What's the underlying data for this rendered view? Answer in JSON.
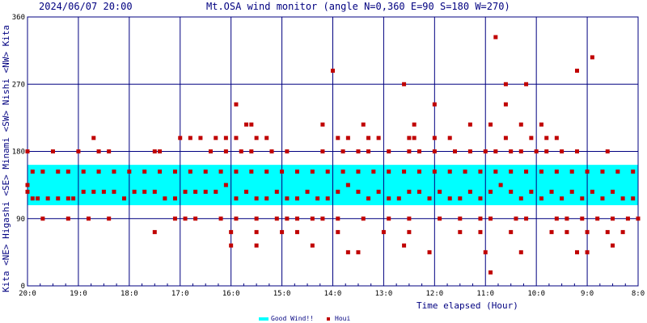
{
  "header": {
    "timestamp": "2024/06/07 20:00",
    "title": "Mt.OSA wind monitor (angle N=0,360 E=90 S=180 W=270)"
  },
  "side_label": "Kita  <NE> Higashi  <SE> Minami  <SW> Nishi  <NW>  Kita",
  "colors": {
    "grid": "#000080",
    "band": "#00ffff",
    "points": "#c00000",
    "bg": "#ffffff"
  },
  "chart_data": {
    "type": "scatter",
    "title": "Mt.OSA wind monitor (angle N=0,360 E=90 S=180 W=270)",
    "xlabel": "Time elapsed (Hour)",
    "ylabel": "Kita  <NE> Higashi  <SE> Minami  <SW> Nishi  <NW>  Kita",
    "ylim": [
      0,
      360
    ],
    "y_ticks": [
      0,
      90,
      180,
      270,
      360
    ],
    "x_ticks": [
      "20:0",
      "19:0",
      "18:0",
      "17:0",
      "16:0",
      "15:0",
      "14:0",
      "13:0",
      "12:0",
      "11:0",
      "10:0",
      "9:0",
      "8:0"
    ],
    "grid": true,
    "legend_position": "bottom-center",
    "good_wind_band": [
      108,
      162
    ],
    "legend": [
      {
        "name": "Good Wind!!",
        "kind": "band"
      },
      {
        "name": "Houi",
        "kind": "marker"
      }
    ],
    "series": [
      {
        "name": "Houi",
        "points": [
          [
            20.0,
            135
          ],
          [
            20.0,
            126
          ],
          [
            19.9,
            117
          ],
          [
            19.8,
            117
          ],
          [
            19.6,
            117
          ],
          [
            19.4,
            117
          ],
          [
            19.2,
            117
          ],
          [
            19.1,
            117
          ],
          [
            18.9,
            126
          ],
          [
            18.7,
            126
          ],
          [
            18.5,
            126
          ],
          [
            18.3,
            126
          ],
          [
            18.1,
            117
          ],
          [
            17.9,
            126
          ],
          [
            17.7,
            126
          ],
          [
            17.5,
            126
          ],
          [
            17.3,
            117
          ],
          [
            17.1,
            117
          ],
          [
            16.9,
            126
          ],
          [
            16.7,
            126
          ],
          [
            16.5,
            126
          ],
          [
            16.3,
            126
          ],
          [
            16.1,
            135
          ],
          [
            15.9,
            117
          ],
          [
            15.7,
            126
          ],
          [
            15.5,
            117
          ],
          [
            15.3,
            117
          ],
          [
            15.1,
            126
          ],
          [
            14.9,
            117
          ],
          [
            14.7,
            117
          ],
          [
            14.5,
            126
          ],
          [
            14.3,
            117
          ],
          [
            14.1,
            117
          ],
          [
            13.9,
            126
          ],
          [
            13.7,
            135
          ],
          [
            13.5,
            126
          ],
          [
            13.3,
            117
          ],
          [
            13.1,
            126
          ],
          [
            12.9,
            117
          ],
          [
            12.7,
            117
          ],
          [
            12.5,
            126
          ],
          [
            12.3,
            126
          ],
          [
            12.1,
            117
          ],
          [
            11.9,
            126
          ],
          [
            11.7,
            117
          ],
          [
            11.5,
            117
          ],
          [
            11.3,
            126
          ],
          [
            11.1,
            117
          ],
          [
            10.9,
            126
          ],
          [
            10.7,
            135
          ],
          [
            10.5,
            126
          ],
          [
            10.3,
            117
          ],
          [
            10.1,
            126
          ],
          [
            9.9,
            117
          ],
          [
            9.7,
            126
          ],
          [
            9.5,
            117
          ],
          [
            9.3,
            126
          ],
          [
            9.1,
            117
          ],
          [
            8.9,
            126
          ],
          [
            8.7,
            117
          ],
          [
            8.5,
            126
          ],
          [
            8.3,
            117
          ],
          [
            8.1,
            117
          ],
          [
            19.9,
            153
          ],
          [
            19.7,
            153
          ],
          [
            19.4,
            153
          ],
          [
            19.2,
            153
          ],
          [
            18.9,
            153
          ],
          [
            18.6,
            153
          ],
          [
            18.3,
            153
          ],
          [
            18.0,
            153
          ],
          [
            17.7,
            153
          ],
          [
            17.4,
            153
          ],
          [
            17.1,
            153
          ],
          [
            16.8,
            153
          ],
          [
            16.5,
            153
          ],
          [
            16.2,
            153
          ],
          [
            15.9,
            153
          ],
          [
            15.6,
            153
          ],
          [
            15.3,
            153
          ],
          [
            15.0,
            153
          ],
          [
            14.7,
            153
          ],
          [
            14.4,
            153
          ],
          [
            14.1,
            153
          ],
          [
            13.8,
            153
          ],
          [
            13.5,
            153
          ],
          [
            13.2,
            153
          ],
          [
            12.9,
            153
          ],
          [
            12.6,
            153
          ],
          [
            12.3,
            153
          ],
          [
            12.0,
            153
          ],
          [
            11.7,
            153
          ],
          [
            11.4,
            153
          ],
          [
            11.1,
            153
          ],
          [
            10.8,
            153
          ],
          [
            10.5,
            153
          ],
          [
            10.2,
            153
          ],
          [
            9.9,
            153
          ],
          [
            9.6,
            153
          ],
          [
            9.3,
            153
          ],
          [
            9.0,
            153
          ],
          [
            8.7,
            153
          ],
          [
            8.4,
            153
          ],
          [
            8.1,
            153
          ],
          [
            20.0,
            180
          ],
          [
            19.5,
            180
          ],
          [
            19.0,
            180
          ],
          [
            18.6,
            180
          ],
          [
            18.4,
            180
          ],
          [
            17.5,
            180
          ],
          [
            17.4,
            180
          ],
          [
            16.4,
            180
          ],
          [
            16.1,
            180
          ],
          [
            15.8,
            180
          ],
          [
            15.6,
            180
          ],
          [
            15.2,
            180
          ],
          [
            14.9,
            180
          ],
          [
            14.2,
            180
          ],
          [
            13.8,
            180
          ],
          [
            13.5,
            180
          ],
          [
            13.3,
            180
          ],
          [
            12.9,
            180
          ],
          [
            12.5,
            180
          ],
          [
            12.3,
            180
          ],
          [
            12.0,
            180
          ],
          [
            11.6,
            180
          ],
          [
            11.3,
            180
          ],
          [
            11.0,
            180
          ],
          [
            10.8,
            180
          ],
          [
            10.5,
            180
          ],
          [
            10.3,
            180
          ],
          [
            10.0,
            180
          ],
          [
            9.8,
            180
          ],
          [
            9.5,
            180
          ],
          [
            9.2,
            180
          ],
          [
            8.6,
            180
          ],
          [
            18.7,
            198
          ],
          [
            17.0,
            198
          ],
          [
            16.8,
            198
          ],
          [
            16.6,
            198
          ],
          [
            16.3,
            198
          ],
          [
            16.1,
            198
          ],
          [
            15.9,
            198
          ],
          [
            15.5,
            198
          ],
          [
            15.3,
            198
          ],
          [
            13.9,
            198
          ],
          [
            13.7,
            198
          ],
          [
            13.3,
            198
          ],
          [
            13.1,
            198
          ],
          [
            12.5,
            198
          ],
          [
            12.4,
            198
          ],
          [
            12.0,
            198
          ],
          [
            11.7,
            198
          ],
          [
            10.6,
            198
          ],
          [
            10.1,
            198
          ],
          [
            9.8,
            198
          ],
          [
            9.6,
            198
          ],
          [
            15.7,
            216
          ],
          [
            15.6,
            216
          ],
          [
            14.2,
            216
          ],
          [
            13.4,
            216
          ],
          [
            12.4,
            216
          ],
          [
            11.3,
            216
          ],
          [
            10.9,
            216
          ],
          [
            10.3,
            216
          ],
          [
            9.9,
            216
          ],
          [
            15.9,
            243
          ],
          [
            12.0,
            243
          ],
          [
            10.6,
            243
          ],
          [
            12.6,
            270
          ],
          [
            10.6,
            270
          ],
          [
            10.2,
            270
          ],
          [
            14.0,
            288
          ],
          [
            9.2,
            288
          ],
          [
            8.9,
            306
          ],
          [
            10.8,
            333
          ],
          [
            19.7,
            90
          ],
          [
            19.2,
            90
          ],
          [
            18.8,
            90
          ],
          [
            18.4,
            90
          ],
          [
            17.1,
            90
          ],
          [
            16.9,
            90
          ],
          [
            16.7,
            90
          ],
          [
            16.2,
            90
          ],
          [
            15.9,
            90
          ],
          [
            15.5,
            90
          ],
          [
            15.1,
            90
          ],
          [
            14.9,
            90
          ],
          [
            14.7,
            90
          ],
          [
            14.4,
            90
          ],
          [
            14.2,
            90
          ],
          [
            13.9,
            90
          ],
          [
            13.4,
            90
          ],
          [
            12.9,
            90
          ],
          [
            12.5,
            90
          ],
          [
            11.9,
            90
          ],
          [
            11.5,
            90
          ],
          [
            11.1,
            90
          ],
          [
            10.9,
            90
          ],
          [
            10.4,
            90
          ],
          [
            10.2,
            90
          ],
          [
            9.6,
            90
          ],
          [
            9.4,
            90
          ],
          [
            9.1,
            90
          ],
          [
            8.8,
            90
          ],
          [
            8.5,
            90
          ],
          [
            8.2,
            90
          ],
          [
            8.0,
            90
          ],
          [
            17.5,
            72
          ],
          [
            16.0,
            72
          ],
          [
            15.5,
            72
          ],
          [
            15.0,
            72
          ],
          [
            14.7,
            72
          ],
          [
            13.9,
            72
          ],
          [
            13.0,
            72
          ],
          [
            12.5,
            72
          ],
          [
            11.5,
            72
          ],
          [
            11.1,
            72
          ],
          [
            10.5,
            72
          ],
          [
            9.7,
            72
          ],
          [
            9.4,
            72
          ],
          [
            9.0,
            72
          ],
          [
            8.6,
            72
          ],
          [
            8.3,
            72
          ],
          [
            16.0,
            54
          ],
          [
            15.5,
            54
          ],
          [
            14.4,
            54
          ],
          [
            13.5,
            45
          ],
          [
            13.7,
            45
          ],
          [
            12.1,
            45
          ],
          [
            11.0,
            45
          ],
          [
            10.3,
            45
          ],
          [
            9.2,
            45
          ],
          [
            9.0,
            45
          ],
          [
            8.5,
            54
          ],
          [
            12.6,
            54
          ],
          [
            10.9,
            18
          ]
        ]
      }
    ]
  }
}
